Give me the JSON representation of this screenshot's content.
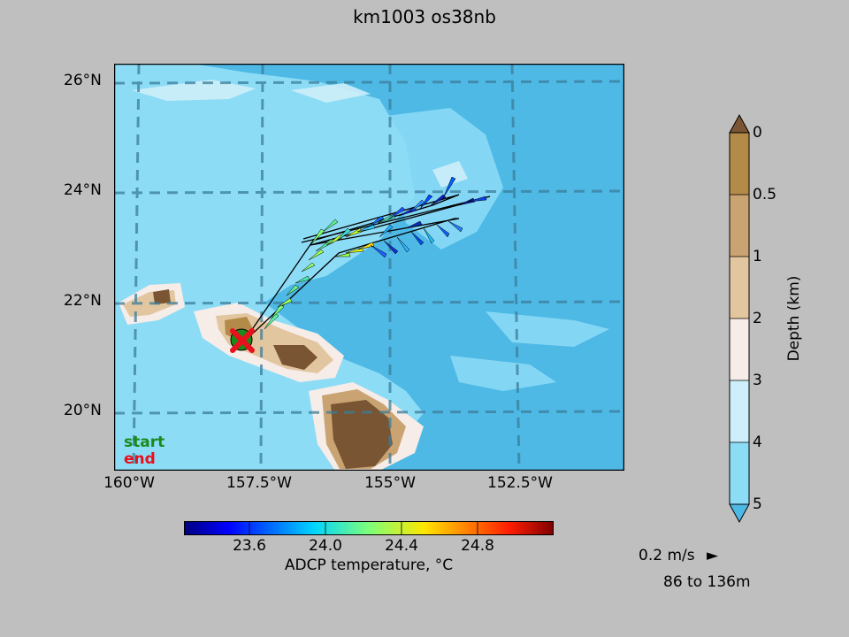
{
  "title": "km1003 os38nb",
  "lat_labels": [
    "26°N",
    "24°N",
    "22°N",
    "20°N"
  ],
  "lon_labels": [
    "160°W",
    "157.5°W",
    "155°W",
    "152.5°W"
  ],
  "legend": {
    "start": "start",
    "end": "end",
    "start_color": "#1a8a1a",
    "end_color": "#e8101c"
  },
  "temp_colorbar": {
    "label": "ADCP temperature, °C",
    "ticks": [
      "23.6",
      "24.0",
      "24.4",
      "24.8"
    ],
    "colormap": "jet"
  },
  "depth_colorbar": {
    "label": "Depth (km)",
    "ticks": [
      "0",
      "0.5",
      "1",
      "2",
      "3",
      "4",
      "5"
    ],
    "colors": [
      "#7a5533",
      "#b38a48",
      "#c9a472",
      "#e2c6a0",
      "#f6ece8",
      "#cdeefa",
      "#8ddcf6",
      "#4fb9e6"
    ]
  },
  "vector_scale": {
    "label": "0.2 m/s",
    "arrow": "►"
  },
  "depth_range": "86 to 136m",
  "map": {
    "ocean_deep": "#4fb9e6",
    "ocean_mid": "#8ddcf6",
    "grid_color": "#3a7d9a"
  }
}
